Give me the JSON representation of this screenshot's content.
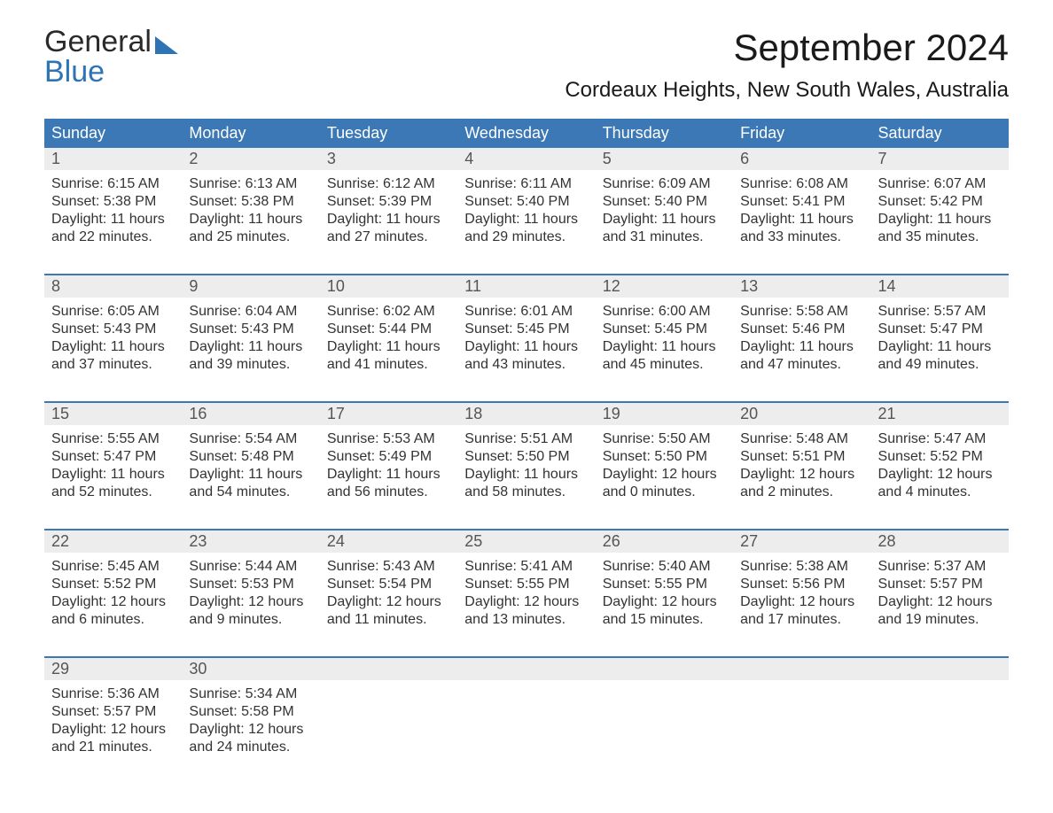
{
  "brand": {
    "word1": "General",
    "word2": "Blue"
  },
  "title": "September 2024",
  "location": "Cordeaux Heights, New South Wales, Australia",
  "colors": {
    "header_bg": "#3b78b5",
    "header_text": "#ffffff",
    "daynum_bg": "#ededed",
    "daynum_text": "#555555",
    "body_text": "#333333",
    "rule": "#3b78b5",
    "page_bg": "#ffffff",
    "logo_blue": "#2e74b5"
  },
  "typography": {
    "title_fontsize": 42,
    "location_fontsize": 24,
    "dayhead_fontsize": 18,
    "cell_fontsize": 16,
    "logo_fontsize": 34
  },
  "day_names": [
    "Sunday",
    "Monday",
    "Tuesday",
    "Wednesday",
    "Thursday",
    "Friday",
    "Saturday"
  ],
  "labels": {
    "sunrise": "Sunrise:",
    "sunset": "Sunset:",
    "daylight": "Daylight:"
  },
  "weeks": [
    [
      {
        "num": "1",
        "sunrise": "6:15 AM",
        "sunset": "5:38 PM",
        "daylight": "11 hours and 22 minutes."
      },
      {
        "num": "2",
        "sunrise": "6:13 AM",
        "sunset": "5:38 PM",
        "daylight": "11 hours and 25 minutes."
      },
      {
        "num": "3",
        "sunrise": "6:12 AM",
        "sunset": "5:39 PM",
        "daylight": "11 hours and 27 minutes."
      },
      {
        "num": "4",
        "sunrise": "6:11 AM",
        "sunset": "5:40 PM",
        "daylight": "11 hours and 29 minutes."
      },
      {
        "num": "5",
        "sunrise": "6:09 AM",
        "sunset": "5:40 PM",
        "daylight": "11 hours and 31 minutes."
      },
      {
        "num": "6",
        "sunrise": "6:08 AM",
        "sunset": "5:41 PM",
        "daylight": "11 hours and 33 minutes."
      },
      {
        "num": "7",
        "sunrise": "6:07 AM",
        "sunset": "5:42 PM",
        "daylight": "11 hours and 35 minutes."
      }
    ],
    [
      {
        "num": "8",
        "sunrise": "6:05 AM",
        "sunset": "5:43 PM",
        "daylight": "11 hours and 37 minutes."
      },
      {
        "num": "9",
        "sunrise": "6:04 AM",
        "sunset": "5:43 PM",
        "daylight": "11 hours and 39 minutes."
      },
      {
        "num": "10",
        "sunrise": "6:02 AM",
        "sunset": "5:44 PM",
        "daylight": "11 hours and 41 minutes."
      },
      {
        "num": "11",
        "sunrise": "6:01 AM",
        "sunset": "5:45 PM",
        "daylight": "11 hours and 43 minutes."
      },
      {
        "num": "12",
        "sunrise": "6:00 AM",
        "sunset": "5:45 PM",
        "daylight": "11 hours and 45 minutes."
      },
      {
        "num": "13",
        "sunrise": "5:58 AM",
        "sunset": "5:46 PM",
        "daylight": "11 hours and 47 minutes."
      },
      {
        "num": "14",
        "sunrise": "5:57 AM",
        "sunset": "5:47 PM",
        "daylight": "11 hours and 49 minutes."
      }
    ],
    [
      {
        "num": "15",
        "sunrise": "5:55 AM",
        "sunset": "5:47 PM",
        "daylight": "11 hours and 52 minutes."
      },
      {
        "num": "16",
        "sunrise": "5:54 AM",
        "sunset": "5:48 PM",
        "daylight": "11 hours and 54 minutes."
      },
      {
        "num": "17",
        "sunrise": "5:53 AM",
        "sunset": "5:49 PM",
        "daylight": "11 hours and 56 minutes."
      },
      {
        "num": "18",
        "sunrise": "5:51 AM",
        "sunset": "5:50 PM",
        "daylight": "11 hours and 58 minutes."
      },
      {
        "num": "19",
        "sunrise": "5:50 AM",
        "sunset": "5:50 PM",
        "daylight": "12 hours and 0 minutes."
      },
      {
        "num": "20",
        "sunrise": "5:48 AM",
        "sunset": "5:51 PM",
        "daylight": "12 hours and 2 minutes."
      },
      {
        "num": "21",
        "sunrise": "5:47 AM",
        "sunset": "5:52 PM",
        "daylight": "12 hours and 4 minutes."
      }
    ],
    [
      {
        "num": "22",
        "sunrise": "5:45 AM",
        "sunset": "5:52 PM",
        "daylight": "12 hours and 6 minutes."
      },
      {
        "num": "23",
        "sunrise": "5:44 AM",
        "sunset": "5:53 PM",
        "daylight": "12 hours and 9 minutes."
      },
      {
        "num": "24",
        "sunrise": "5:43 AM",
        "sunset": "5:54 PM",
        "daylight": "12 hours and 11 minutes."
      },
      {
        "num": "25",
        "sunrise": "5:41 AM",
        "sunset": "5:55 PM",
        "daylight": "12 hours and 13 minutes."
      },
      {
        "num": "26",
        "sunrise": "5:40 AM",
        "sunset": "5:55 PM",
        "daylight": "12 hours and 15 minutes."
      },
      {
        "num": "27",
        "sunrise": "5:38 AM",
        "sunset": "5:56 PM",
        "daylight": "12 hours and 17 minutes."
      },
      {
        "num": "28",
        "sunrise": "5:37 AM",
        "sunset": "5:57 PM",
        "daylight": "12 hours and 19 minutes."
      }
    ],
    [
      {
        "num": "29",
        "sunrise": "5:36 AM",
        "sunset": "5:57 PM",
        "daylight": "12 hours and 21 minutes."
      },
      {
        "num": "30",
        "sunrise": "5:34 AM",
        "sunset": "5:58 PM",
        "daylight": "12 hours and 24 minutes."
      },
      null,
      null,
      null,
      null,
      null
    ]
  ]
}
